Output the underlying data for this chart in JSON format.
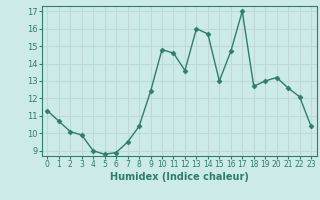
{
  "x": [
    0,
    1,
    2,
    3,
    4,
    5,
    6,
    7,
    8,
    9,
    10,
    11,
    12,
    13,
    14,
    15,
    16,
    17,
    18,
    19,
    20,
    21,
    22,
    23
  ],
  "y": [
    11.3,
    10.7,
    10.1,
    9.9,
    9.0,
    8.8,
    8.9,
    9.5,
    10.4,
    12.4,
    14.8,
    14.6,
    13.6,
    16.0,
    15.7,
    13.0,
    14.7,
    17.0,
    12.7,
    13.0,
    13.2,
    12.6,
    12.1,
    10.4
  ],
  "xlabel": "Humidex (Indice chaleur)",
  "ylim_min": 8.7,
  "ylim_max": 17.3,
  "xlim_min": -0.5,
  "xlim_max": 23.5,
  "yticks": [
    9,
    10,
    11,
    12,
    13,
    14,
    15,
    16,
    17
  ],
  "xticks": [
    0,
    1,
    2,
    3,
    4,
    5,
    6,
    7,
    8,
    9,
    10,
    11,
    12,
    13,
    14,
    15,
    16,
    17,
    18,
    19,
    20,
    21,
    22,
    23
  ],
  "line_color": "#2e7d6e",
  "marker": "D",
  "marker_size": 2.5,
  "bg_color": "#cceae8",
  "grid_color": "#c0d8d8",
  "xlabel_color": "#2e7d6e",
  "tick_color": "#2e7d6e"
}
